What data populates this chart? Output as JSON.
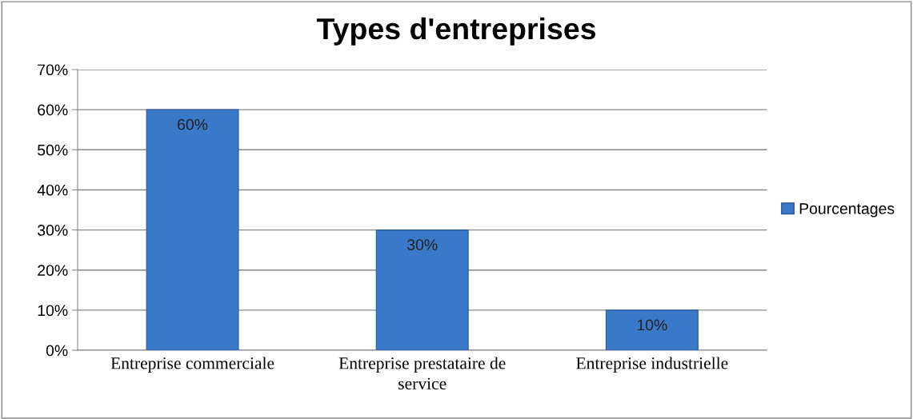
{
  "chart_data": {
    "type": "bar",
    "title": "Types d'entreprises",
    "categories": [
      "Entreprise commerciale",
      "Entreprise prestataire de service",
      "Entreprise industrielle"
    ],
    "series": [
      {
        "name": "Pourcentages",
        "color": "#3a78c8",
        "values": [
          60,
          30,
          10
        ],
        "value_labels": [
          "60%",
          "30%",
          "10%"
        ]
      }
    ],
    "ylim": [
      0,
      70
    ],
    "yticks": [
      {
        "value": 0,
        "label": "0%"
      },
      {
        "value": 10,
        "label": "10%"
      },
      {
        "value": 20,
        "label": "20%"
      },
      {
        "value": 30,
        "label": "30%"
      },
      {
        "value": 40,
        "label": "40%"
      },
      {
        "value": 50,
        "label": "50%"
      },
      {
        "value": 60,
        "label": "60%"
      },
      {
        "value": 70,
        "label": "70%"
      }
    ],
    "grid": "y",
    "legend": "right"
  }
}
